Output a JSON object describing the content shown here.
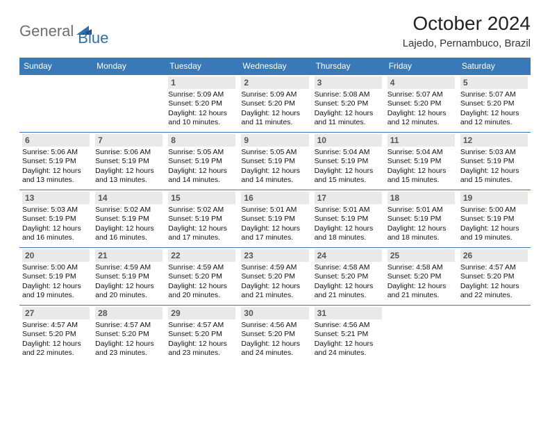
{
  "brand": {
    "general": "General",
    "blue": "Blue"
  },
  "title": "October 2024",
  "location": "Lajedo, Pernambuco, Brazil",
  "colors": {
    "header_bg": "#3a79b7",
    "header_text": "#ffffff",
    "daynum_bg": "#e9e9e9",
    "daynum_text": "#555555",
    "rule": "#3a79b7",
    "logo_gray": "#6e6e6e",
    "logo_blue": "#2f6fb0"
  },
  "dow": [
    "Sunday",
    "Monday",
    "Tuesday",
    "Wednesday",
    "Thursday",
    "Friday",
    "Saturday"
  ],
  "weeks": [
    [
      null,
      null,
      {
        "n": "1",
        "sr": "5:09 AM",
        "ss": "5:20 PM",
        "dl": "12 hours and 10 minutes."
      },
      {
        "n": "2",
        "sr": "5:09 AM",
        "ss": "5:20 PM",
        "dl": "12 hours and 11 minutes."
      },
      {
        "n": "3",
        "sr": "5:08 AM",
        "ss": "5:20 PM",
        "dl": "12 hours and 11 minutes."
      },
      {
        "n": "4",
        "sr": "5:07 AM",
        "ss": "5:20 PM",
        "dl": "12 hours and 12 minutes."
      },
      {
        "n": "5",
        "sr": "5:07 AM",
        "ss": "5:20 PM",
        "dl": "12 hours and 12 minutes."
      }
    ],
    [
      {
        "n": "6",
        "sr": "5:06 AM",
        "ss": "5:19 PM",
        "dl": "12 hours and 13 minutes."
      },
      {
        "n": "7",
        "sr": "5:06 AM",
        "ss": "5:19 PM",
        "dl": "12 hours and 13 minutes."
      },
      {
        "n": "8",
        "sr": "5:05 AM",
        "ss": "5:19 PM",
        "dl": "12 hours and 14 minutes."
      },
      {
        "n": "9",
        "sr": "5:05 AM",
        "ss": "5:19 PM",
        "dl": "12 hours and 14 minutes."
      },
      {
        "n": "10",
        "sr": "5:04 AM",
        "ss": "5:19 PM",
        "dl": "12 hours and 15 minutes."
      },
      {
        "n": "11",
        "sr": "5:04 AM",
        "ss": "5:19 PM",
        "dl": "12 hours and 15 minutes."
      },
      {
        "n": "12",
        "sr": "5:03 AM",
        "ss": "5:19 PM",
        "dl": "12 hours and 15 minutes."
      }
    ],
    [
      {
        "n": "13",
        "sr": "5:03 AM",
        "ss": "5:19 PM",
        "dl": "12 hours and 16 minutes."
      },
      {
        "n": "14",
        "sr": "5:02 AM",
        "ss": "5:19 PM",
        "dl": "12 hours and 16 minutes."
      },
      {
        "n": "15",
        "sr": "5:02 AM",
        "ss": "5:19 PM",
        "dl": "12 hours and 17 minutes."
      },
      {
        "n": "16",
        "sr": "5:01 AM",
        "ss": "5:19 PM",
        "dl": "12 hours and 17 minutes."
      },
      {
        "n": "17",
        "sr": "5:01 AM",
        "ss": "5:19 PM",
        "dl": "12 hours and 18 minutes."
      },
      {
        "n": "18",
        "sr": "5:01 AM",
        "ss": "5:19 PM",
        "dl": "12 hours and 18 minutes."
      },
      {
        "n": "19",
        "sr": "5:00 AM",
        "ss": "5:19 PM",
        "dl": "12 hours and 19 minutes."
      }
    ],
    [
      {
        "n": "20",
        "sr": "5:00 AM",
        "ss": "5:19 PM",
        "dl": "12 hours and 19 minutes."
      },
      {
        "n": "21",
        "sr": "4:59 AM",
        "ss": "5:19 PM",
        "dl": "12 hours and 20 minutes."
      },
      {
        "n": "22",
        "sr": "4:59 AM",
        "ss": "5:20 PM",
        "dl": "12 hours and 20 minutes."
      },
      {
        "n": "23",
        "sr": "4:59 AM",
        "ss": "5:20 PM",
        "dl": "12 hours and 21 minutes."
      },
      {
        "n": "24",
        "sr": "4:58 AM",
        "ss": "5:20 PM",
        "dl": "12 hours and 21 minutes."
      },
      {
        "n": "25",
        "sr": "4:58 AM",
        "ss": "5:20 PM",
        "dl": "12 hours and 21 minutes."
      },
      {
        "n": "26",
        "sr": "4:57 AM",
        "ss": "5:20 PM",
        "dl": "12 hours and 22 minutes."
      }
    ],
    [
      {
        "n": "27",
        "sr": "4:57 AM",
        "ss": "5:20 PM",
        "dl": "12 hours and 22 minutes."
      },
      {
        "n": "28",
        "sr": "4:57 AM",
        "ss": "5:20 PM",
        "dl": "12 hours and 23 minutes."
      },
      {
        "n": "29",
        "sr": "4:57 AM",
        "ss": "5:20 PM",
        "dl": "12 hours and 23 minutes."
      },
      {
        "n": "30",
        "sr": "4:56 AM",
        "ss": "5:20 PM",
        "dl": "12 hours and 24 minutes."
      },
      {
        "n": "31",
        "sr": "4:56 AM",
        "ss": "5:21 PM",
        "dl": "12 hours and 24 minutes."
      },
      null,
      null
    ]
  ],
  "labels": {
    "sunrise": "Sunrise:",
    "sunset": "Sunset:",
    "daylight": "Daylight:"
  }
}
